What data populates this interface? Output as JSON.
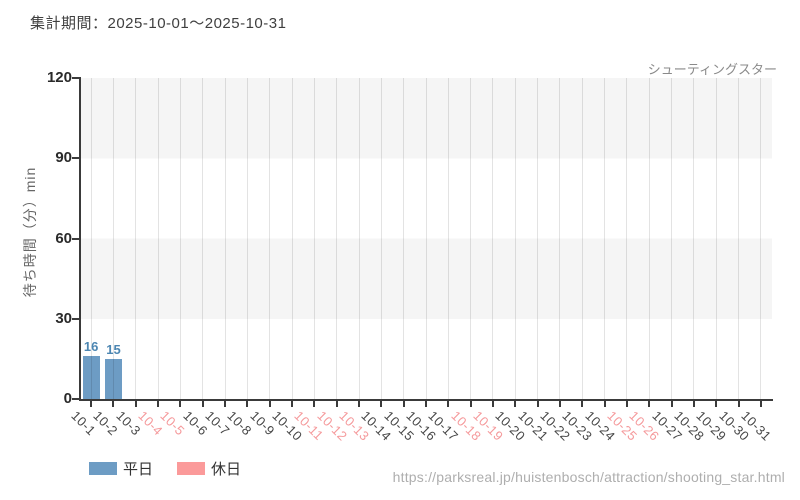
{
  "header": {
    "title": "集計期間：2025-10-01～2025-10-31"
  },
  "footer": {
    "url": "https://parksreal.jp/huistenbosch/attraction/shooting_star.html"
  },
  "chart_data": {
    "type": "bar",
    "title": "集計期間：2025-10-01～2025-10-31",
    "annotation": "シューティングスター",
    "xlabel": "",
    "ylabel": "待ち時間（分）min",
    "ylim": [
      0,
      120
    ],
    "yticks": [
      0,
      30,
      60,
      90,
      120
    ],
    "grid": "vertical",
    "legend_position": "bottom-left",
    "categories": [
      "10-1",
      "10-2",
      "10-3",
      "10-4",
      "10-5",
      "10-6",
      "10-7",
      "10-8",
      "10-9",
      "10-10",
      "10-11",
      "10-12",
      "10-13",
      "10-14",
      "10-15",
      "10-16",
      "10-17",
      "10-18",
      "10-19",
      "10-20",
      "10-21",
      "10-22",
      "10-23",
      "10-24",
      "10-25",
      "10-26",
      "10-27",
      "10-28",
      "10-29",
      "10-30",
      "10-31"
    ],
    "holiday_categories": [
      "10-4",
      "10-5",
      "10-11",
      "10-12",
      "10-13",
      "10-18",
      "10-19",
      "10-25",
      "10-26"
    ],
    "series": [
      {
        "name": "平日",
        "color": "#6d9cc4",
        "values": [
          16,
          15,
          null,
          null,
          null,
          null,
          null,
          null,
          null,
          null,
          null,
          null,
          null,
          null,
          null,
          null,
          null,
          null,
          null,
          null,
          null,
          null,
          null,
          null,
          null,
          null,
          null,
          null,
          null,
          null,
          null
        ]
      },
      {
        "name": "休日",
        "color": "#fb9a9a",
        "values": [
          null,
          null,
          null,
          null,
          null,
          null,
          null,
          null,
          null,
          null,
          null,
          null,
          null,
          null,
          null,
          null,
          null,
          null,
          null,
          null,
          null,
          null,
          null,
          null,
          null,
          null,
          null,
          null,
          null,
          null,
          null
        ]
      }
    ],
    "colors": {
      "band": "#f5f5f5",
      "spine": "#3a3a3a",
      "weekday_tick_label": "#464646",
      "holiday_tick_label": "#f5999b",
      "value_label": "#4c86b2"
    }
  }
}
